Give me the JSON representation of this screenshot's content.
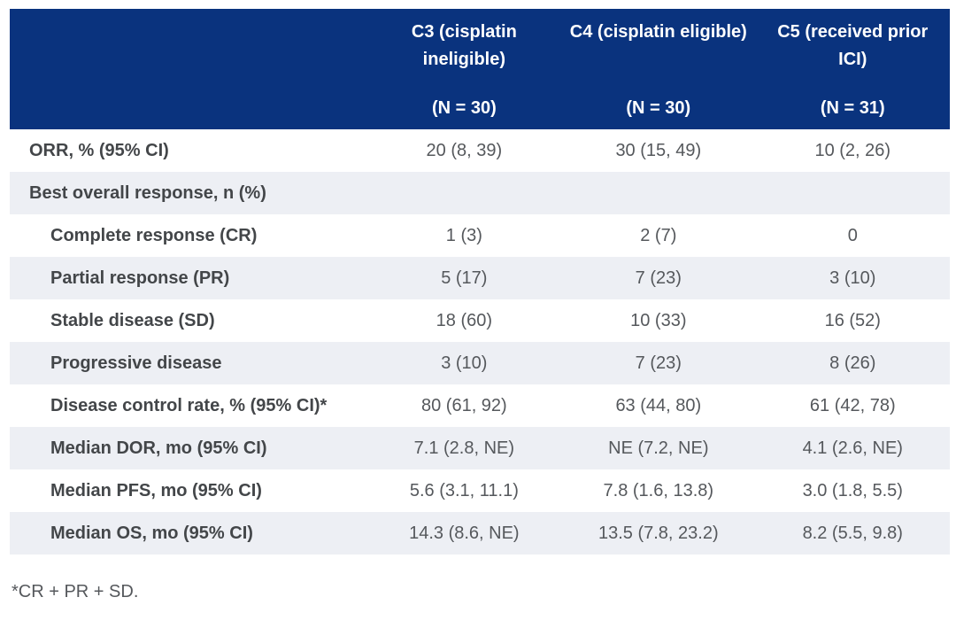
{
  "table": {
    "columns": [
      {
        "title": "C3 (cisplatin ineligible)",
        "n": "(N = 30)"
      },
      {
        "title": "C4 (cisplatin eligible)",
        "n": "(N = 30)"
      },
      {
        "title": "C5 (received prior ICI)",
        "n": "(N = 31)"
      }
    ],
    "rows": [
      {
        "label": "ORR, % (95% CI)",
        "indent": false,
        "values": [
          "20 (8, 39)",
          "30 (15, 49)",
          "10 (2, 26)"
        ]
      },
      {
        "label": "Best overall response, n (%)",
        "indent": false,
        "values": [
          "",
          "",
          ""
        ]
      },
      {
        "label": "Complete response (CR)",
        "indent": true,
        "values": [
          "1 (3)",
          "2 (7)",
          "0"
        ]
      },
      {
        "label": "Partial response (PR)",
        "indent": true,
        "values": [
          "5 (17)",
          "7 (23)",
          "3 (10)"
        ]
      },
      {
        "label": "Stable disease (SD)",
        "indent": true,
        "values": [
          "18 (60)",
          "10 (33)",
          "16 (52)"
        ]
      },
      {
        "label": "Progressive disease",
        "indent": true,
        "values": [
          "3 (10)",
          "7 (23)",
          "8 (26)"
        ]
      },
      {
        "label": "Disease control rate, % (95% CI)*",
        "indent": true,
        "values": [
          "80 (61, 92)",
          "63 (44, 80)",
          "61 (42, 78)"
        ]
      },
      {
        "label": "Median DOR, mo (95% CI)",
        "indent": true,
        "values": [
          "7.1 (2.8, NE)",
          "NE (7.2, NE)",
          "4.1 (2.6, NE)"
        ]
      },
      {
        "label": "Median PFS, mo (95% CI)",
        "indent": true,
        "values": [
          "5.6 (3.1, 11.1)",
          "7.8 (1.6, 13.8)",
          "3.0 (1.8, 5.5)"
        ]
      },
      {
        "label": "Median OS, mo (95% CI)",
        "indent": true,
        "values": [
          "14.3 (8.6, NE)",
          "13.5 (7.8, 23.2)",
          "8.2 (5.5, 9.8)"
        ]
      }
    ],
    "footnote": "*CR + PR + SD."
  },
  "colors": {
    "header_bg": "#0a337e",
    "header_text": "#ffffff",
    "zebra_bg": "#edeff4",
    "label_text": "#434649",
    "value_text": "#55585c"
  }
}
